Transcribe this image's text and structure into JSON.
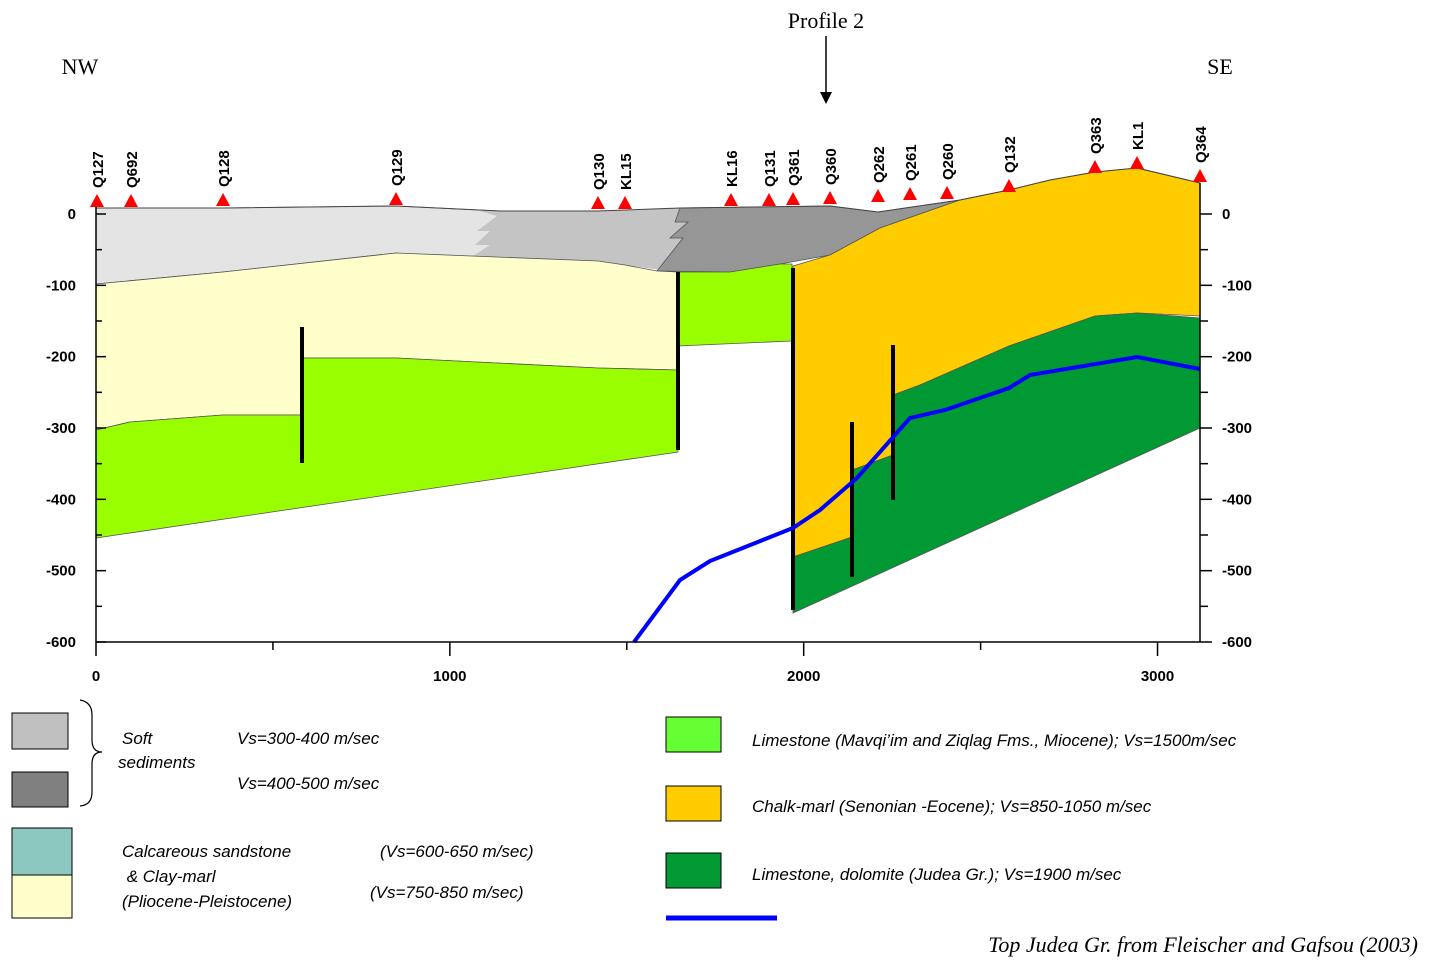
{
  "title": "Profile 2",
  "left_label": "NW",
  "right_label": "SE",
  "wells": [
    "Q127",
    "Q692",
    "Q128",
    "Q129",
    "Q130",
    "KL15",
    "KL16",
    "Q131",
    "Q361",
    "Q360",
    "Q262",
    "Q261",
    "Q260",
    "Q132",
    "Q363",
    "KL1",
    "Q364"
  ],
  "axes": {
    "xlim": [
      0,
      3120
    ],
    "ylim": [
      -600,
      0
    ],
    "xticks": [
      0,
      1000,
      2000,
      3000
    ],
    "yticks": [
      0,
      -100,
      -200,
      -300,
      -400,
      -500,
      -600
    ]
  },
  "legend": {
    "soft_sediments": [
      "Soft",
      "sediments"
    ],
    "soft_vs_1": "Vs=300-400 m/sec",
    "soft_vs_2": "Vs=400-500 m/sec",
    "sandstone": [
      "Calcareous sandstone",
      " & Clay-marl",
      "(Pliocene-Pleistocene)"
    ],
    "sandstone_vs_1": "(Vs=600-650 m/sec)",
    "sandstone_vs_2": "(Vs=750-850 m/sec)",
    "limestone_miocene": "Limestone (Mavqi’im and Ziqlag Fms., Miocene); Vs=1500m/sec",
    "chalk_marl": "Chalk-marl (Senonian -Eocene); Vs=850-1050 m/sec",
    "limestone_judea": "Limestone, dolomite (Judea Gr.); Vs=1900 m/sec",
    "top_judea": "Top Judea Gr. from Fleischer and Gafsou (2003)"
  }
}
